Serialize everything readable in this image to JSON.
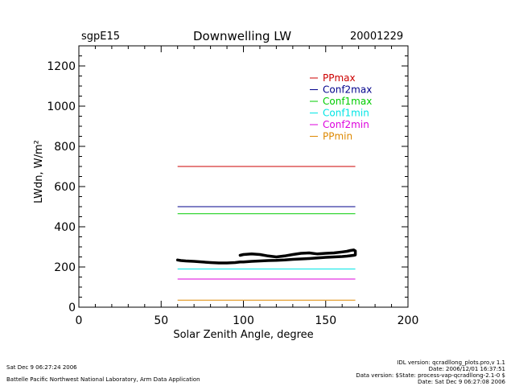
{
  "header": {
    "site": "sgpE15",
    "title": "Downwelling LW",
    "date": "20001229"
  },
  "footer": {
    "left_line1": "Sat Dec  9 06:27:24 2006",
    "left_line2": "Battelle Pacific Northwest National Laboratory, Arm Data Application",
    "right_line1": "IDL version: qcradllong_plots.pro,v 1.1",
    "right_line2": "Date: 2006/12/01 16:37:51",
    "right_line3": "Data version: $State: process-vap-qcradllong-2.1-0 $",
    "right_line4": "Date: Sat Dec  9 06:27:08 2006"
  },
  "chart_data": {
    "type": "line",
    "title": "Downwelling LW",
    "xlabel": "Solar Zenith Angle, degree",
    "ylabel": "LWdn, W/m²",
    "xlim": [
      0,
      200
    ],
    "ylim": [
      0,
      1300
    ],
    "xticks": [
      0,
      50,
      100,
      150,
      200
    ],
    "yticks": [
      0,
      200,
      400,
      600,
      800,
      1000,
      1200
    ],
    "grid": false,
    "legend_position": "top-right",
    "limits": [
      {
        "name": "PPmax",
        "value": 700,
        "x": [
          60,
          168
        ],
        "color": "#cc0000"
      },
      {
        "name": "Conf2max",
        "value": 500,
        "x": [
          60,
          168
        ],
        "color": "#00008b"
      },
      {
        "name": "Conf1max",
        "value": 465,
        "x": [
          60,
          168
        ],
        "color": "#00cc00"
      },
      {
        "name": "Conf1min",
        "value": 190,
        "x": [
          60,
          168
        ],
        "color": "#00e5e5"
      },
      {
        "name": "Conf2min",
        "value": 140,
        "x": [
          60,
          168
        ],
        "color": "#dd00dd"
      },
      {
        "name": "PPmin",
        "value": 35,
        "x": [
          60,
          168
        ],
        "color": "#dd8800"
      }
    ],
    "series": [
      {
        "color": "#000000",
        "x": [
          60,
          62,
          65,
          70,
          75,
          80,
          85,
          90,
          95,
          98,
          100,
          105,
          110,
          115,
          120,
          125,
          130,
          135,
          140,
          145,
          150,
          155,
          160,
          163,
          165,
          167,
          168,
          168,
          167,
          165,
          163,
          160,
          155,
          150,
          145,
          140,
          135,
          130,
          125,
          120,
          115,
          110,
          105,
          100,
          98
        ],
        "y": [
          235,
          232,
          230,
          228,
          225,
          222,
          220,
          220,
          222,
          225,
          225,
          228,
          230,
          232,
          233,
          235,
          238,
          240,
          242,
          245,
          248,
          250,
          252,
          254,
          256,
          258,
          260,
          280,
          285,
          282,
          278,
          275,
          270,
          268,
          265,
          270,
          268,
          262,
          255,
          250,
          255,
          262,
          265,
          262,
          258
        ]
      }
    ]
  }
}
